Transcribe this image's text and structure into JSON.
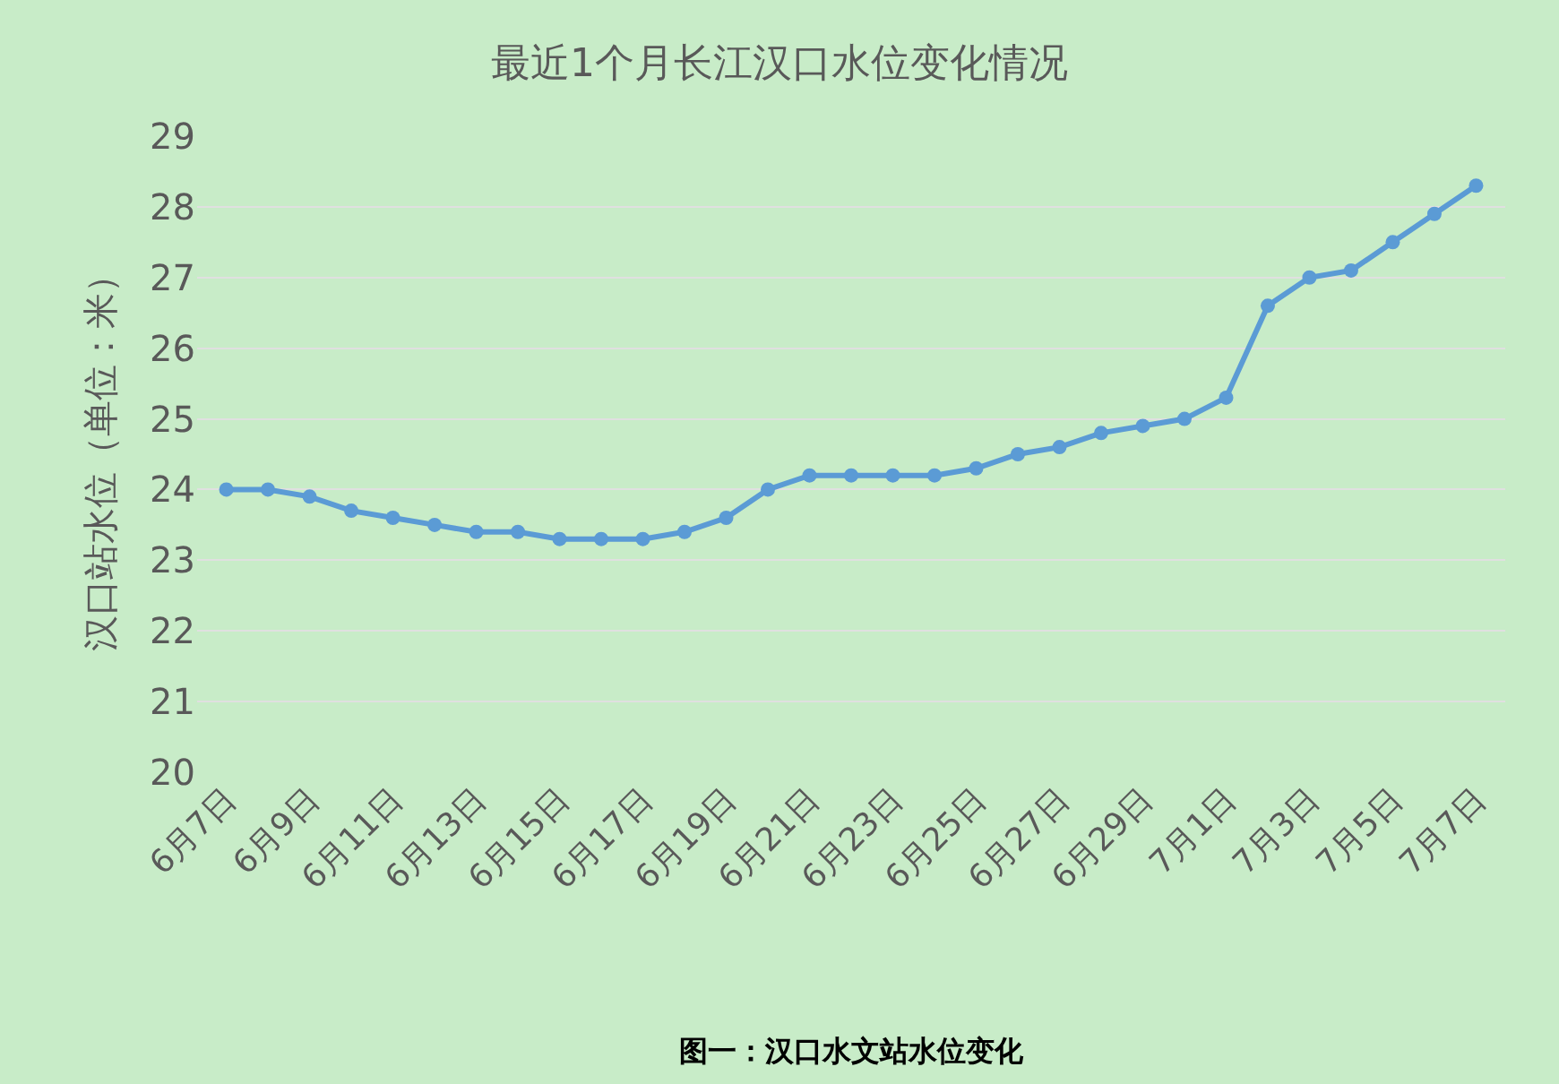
{
  "chart_data": {
    "type": "line",
    "title": "最近1个月长江汉口水位变化情况",
    "ylabel": "汉口站水位（单位：米）",
    "categories": [
      "6月7日",
      null,
      "6月9日",
      null,
      "6月11日",
      null,
      "6月13日",
      null,
      "6月15日",
      null,
      "6月17日",
      null,
      "6月19日",
      null,
      "6月21日",
      null,
      "6月23日",
      null,
      "6月25日",
      null,
      "6月27日",
      null,
      "6月29日",
      null,
      "7月1日",
      null,
      "7月3日",
      null,
      "7月5日",
      null,
      "7月7日"
    ],
    "series": [
      {
        "color": "#5b9bd5",
        "values": [
          24.0,
          24.0,
          23.9,
          23.7,
          23.6,
          23.5,
          23.4,
          23.4,
          23.3,
          23.3,
          23.3,
          23.4,
          23.6,
          24.0,
          24.2,
          24.2,
          24.2,
          24.2,
          24.3,
          24.5,
          24.6,
          24.8,
          24.9,
          25.0,
          25.3,
          26.6,
          27.0,
          27.1,
          27.5,
          27.9,
          28.3
        ]
      }
    ],
    "ylim": [
      20,
      29
    ],
    "yticks": [
      20,
      21,
      22,
      23,
      24,
      25,
      26,
      27,
      28,
      29
    ],
    "grid": "y",
    "marker": "circle",
    "line_style": "solid",
    "annotations": [
      "图一：汉口水文站水位变化"
    ]
  }
}
